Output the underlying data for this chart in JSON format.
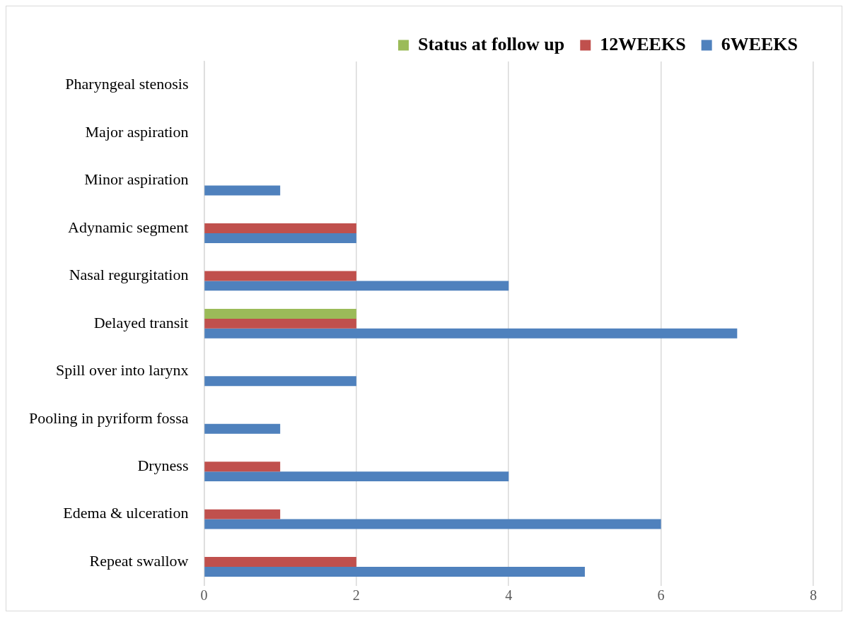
{
  "chart_data": {
    "type": "bar",
    "orientation": "horizontal",
    "categories": [
      "Pharyngeal stenosis",
      "Major aspiration",
      "Minor aspiration",
      "Adynamic segment",
      "Nasal regurgitation",
      "Delayed transit",
      "Spill over into larynx",
      "Pooling in pyriform fossa",
      "Dryness",
      "Edema & ulceration",
      "Repeat swallow"
    ],
    "series": [
      {
        "name": "Status at follow up",
        "color": "#9bbb59",
        "values": [
          0,
          0,
          0,
          0,
          0,
          2,
          0,
          0,
          0,
          0,
          0
        ]
      },
      {
        "name": "12WEEKS",
        "color": "#c0504d",
        "values": [
          0,
          0,
          0,
          2,
          2,
          2,
          0,
          0,
          1,
          1,
          2
        ]
      },
      {
        "name": "6WEEKS",
        "color": "#4f81bd",
        "values": [
          0,
          0,
          1,
          2,
          4,
          7,
          2,
          1,
          4,
          6,
          5
        ]
      }
    ],
    "xlim": [
      0,
      8
    ],
    "xticks": [
      0,
      2,
      4,
      6,
      8
    ],
    "grid": "x",
    "legend": "top right"
  }
}
